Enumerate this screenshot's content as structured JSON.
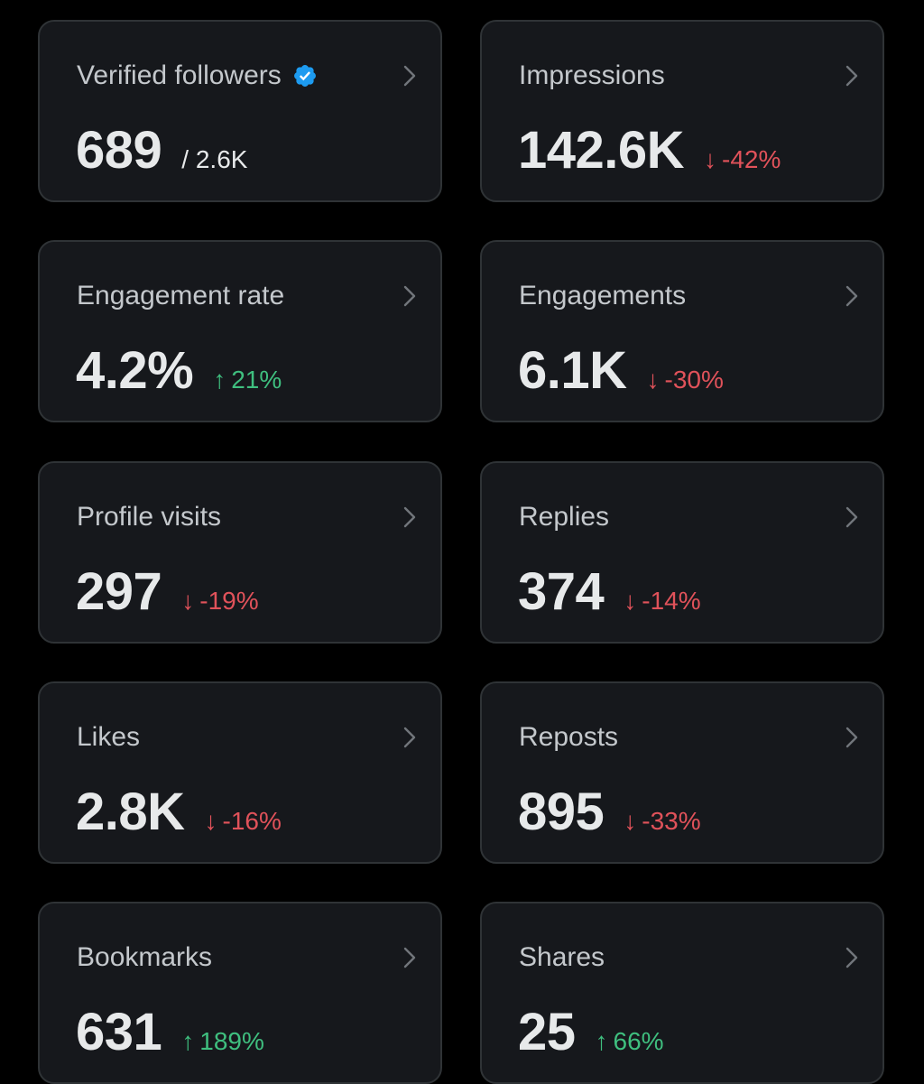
{
  "colors": {
    "background": "#000000",
    "card": "#16181c",
    "border": "#2f3336",
    "negative": "#e0525a",
    "positive": "#3fbf7f",
    "verified": "#1d9bf0"
  },
  "cards": [
    {
      "label": "Verified followers",
      "value": "689",
      "sub": "/ 2.6K",
      "icon": "verified-badge-icon"
    },
    {
      "label": "Impressions",
      "value": "142.6K",
      "delta": "-42%",
      "direction": "down",
      "arrow": "↓"
    },
    {
      "label": "Engagement rate",
      "value": "4.2%",
      "delta": "21%",
      "direction": "up",
      "arrow": "↑"
    },
    {
      "label": "Engagements",
      "value": "6.1K",
      "delta": "-30%",
      "direction": "down",
      "arrow": "↓"
    },
    {
      "label": "Profile visits",
      "value": "297",
      "delta": "-19%",
      "direction": "down",
      "arrow": "↓"
    },
    {
      "label": "Replies",
      "value": "374",
      "delta": "-14%",
      "direction": "down",
      "arrow": "↓"
    },
    {
      "label": "Likes",
      "value": "2.8K",
      "delta": "-16%",
      "direction": "down",
      "arrow": "↓"
    },
    {
      "label": "Reposts",
      "value": "895",
      "delta": "-33%",
      "direction": "down",
      "arrow": "↓"
    },
    {
      "label": "Bookmarks",
      "value": "631",
      "delta": "189%",
      "direction": "up",
      "arrow": "↑"
    },
    {
      "label": "Shares",
      "value": "25",
      "delta": "66%",
      "direction": "up",
      "arrow": "↑"
    }
  ]
}
